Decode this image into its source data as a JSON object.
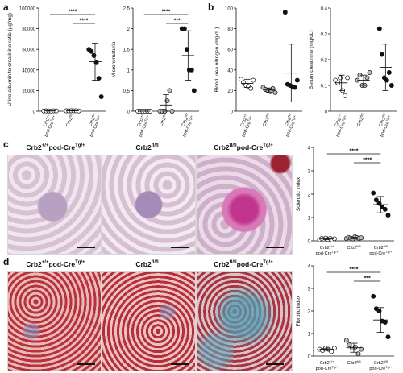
{
  "panels": {
    "a": "a",
    "b": "b",
    "c": "c",
    "d": "d"
  },
  "groups3": [
    "Crb2+/+ pod-Cre Tg/+",
    "Crb2 fl/fl",
    "Crb2 fl/fl pod-Cre Tg/+"
  ],
  "group_labels": {
    "g1_line1": "Crb2",
    "g1_sup1": "+/+",
    "g1_line2": "pod-Cre",
    "g1_sup2": "Tg/+",
    "g2_line1": "Crb2",
    "g2_sup1": "fl/fl",
    "g3_line1": "Crb2",
    "g3_sup1": "fl/fl",
    "g3_line2": "pod-Cre",
    "g3_sup2": "Tg/+"
  },
  "sig": {
    "four": "****",
    "three": "***"
  },
  "micro_headers": {
    "c1": "Crb2",
    "c1s": "+/+",
    "c1b": "pod-Cre",
    "c1bs": "Tg/+",
    "c2": "Crb2",
    "c2s": "fl/fl",
    "c3": "Crb2",
    "c3s": "fl/fl",
    "c3b": "pod-Cre",
    "c3bs": "Tg/+"
  },
  "chart_data": [
    {
      "type": "scatter",
      "panel": "a",
      "ylabel": "Urine albumin to creatinine ratio (µg/mg)",
      "ylim": [
        0,
        100000
      ],
      "yticks": [
        0,
        20000,
        40000,
        60000,
        80000,
        100000
      ],
      "yticklabels": [
        "0",
        "20000",
        "40000",
        "60000",
        "80000",
        "100000"
      ],
      "series": [
        {
          "values": [
            200,
            300,
            250,
            150,
            350,
            300
          ]
        },
        {
          "values": [
            400,
            300,
            500,
            350,
            450,
            250
          ]
        },
        {
          "values": [
            60000,
            58000,
            54000,
            47000,
            32000,
            14000
          ]
        }
      ],
      "mean": [
        250,
        375,
        48000
      ],
      "sd": [
        100,
        100,
        18000
      ],
      "brackets": [
        {
          "from": 0,
          "to": 2,
          "label": "****"
        },
        {
          "from": 1,
          "to": 2,
          "label": "****"
        }
      ]
    },
    {
      "type": "scatter",
      "panel": "a",
      "ylabel": "Microhematuria",
      "ylim": [
        0,
        2.5
      ],
      "yticks": [
        0,
        0.5,
        1,
        1.5,
        2,
        2.5
      ],
      "yticklabels": [
        "0",
        "0.5",
        "1",
        "1.5",
        "2",
        "2.5"
      ],
      "series": [
        {
          "values": [
            0,
            0,
            0,
            0,
            0,
            0
          ]
        },
        {
          "values": [
            0,
            0,
            0,
            0.25,
            0.5,
            0
          ]
        },
        {
          "values": [
            2,
            2,
            1.5,
            1,
            1,
            0.5
          ]
        }
      ],
      "mean": [
        0,
        0.15,
        1.35
      ],
      "sd": [
        0,
        0.25,
        0.6
      ],
      "brackets": [
        {
          "from": 0,
          "to": 2,
          "label": "****"
        },
        {
          "from": 1,
          "to": 2,
          "label": "***"
        }
      ]
    },
    {
      "type": "scatter",
      "panel": "b",
      "ylabel": "Blood urea nitrogen (mg/dL)",
      "ylim": [
        0,
        100
      ],
      "yticks": [
        0,
        20,
        40,
        60,
        80,
        100
      ],
      "yticklabels": [
        "0",
        "20",
        "40",
        "60",
        "80",
        "100"
      ],
      "series": [
        {
          "values": [
            31,
            28,
            25,
            24,
            22,
            30
          ]
        },
        {
          "values": [
            23,
            21,
            20,
            19,
            22,
            18
          ]
        },
        {
          "values": [
            96,
            26,
            25,
            24,
            23,
            30
          ]
        }
      ],
      "mean": [
        27,
        20.5,
        37
      ],
      "sd": [
        4,
        2,
        28
      ],
      "brackets": []
    },
    {
      "type": "scatter",
      "panel": "b",
      "ylabel": "Serum creatinine (mg/dL)",
      "ylim": [
        0,
        0.4
      ],
      "yticks": [
        0,
        0.1,
        0.2,
        0.3,
        0.4
      ],
      "yticklabels": [
        "0",
        "0.1",
        "0.2",
        "0.3",
        "0.4"
      ],
      "series": [
        {
          "values": [
            0.12,
            0.11,
            0.13,
            0.08,
            0.06,
            0.13
          ]
        },
        {
          "values": [
            0.12,
            0.14,
            0.1,
            0.1,
            0.13,
            0.15
          ]
        },
        {
          "values": [
            0.32,
            0.22,
            0.13,
            0.12,
            0.15,
            0.1
          ]
        }
      ],
      "mean": [
        0.11,
        0.12,
        0.17
      ],
      "sd": [
        0.03,
        0.02,
        0.09
      ],
      "brackets": []
    },
    {
      "type": "scatter",
      "panel": "c",
      "ylabel": "Sclerotic index",
      "ylim": [
        0,
        4
      ],
      "yticks": [
        0,
        1,
        2,
        3,
        4
      ],
      "yticklabels": [
        "0",
        "1",
        "2",
        "3",
        "4"
      ],
      "series": [
        {
          "values": [
            0.05,
            0.1,
            0.08,
            0.12,
            0.06,
            0.1,
            0.04,
            0.09
          ]
        },
        {
          "values": [
            0.1,
            0.15,
            0.12,
            0.08,
            0.18,
            0.14,
            0.1,
            0.13
          ]
        },
        {
          "values": [
            2.05,
            1.75,
            1.6,
            1.45,
            1.35,
            1.1
          ]
        }
      ],
      "mean": [
        0.08,
        0.12,
        1.55
      ],
      "sd": [
        0.03,
        0.04,
        0.35
      ],
      "brackets": [
        {
          "from": 0,
          "to": 2,
          "label": "****"
        },
        {
          "from": 1,
          "to": 2,
          "label": "****"
        }
      ]
    },
    {
      "type": "scatter",
      "panel": "d",
      "ylabel": "Fibrotic index",
      "ylim": [
        0,
        4
      ],
      "yticks": [
        0,
        1,
        2,
        3,
        4
      ],
      "yticklabels": [
        "0",
        "1",
        "2",
        "3",
        "4"
      ],
      "series": [
        {
          "values": [
            0.3,
            0.25,
            0.35,
            0.3,
            0.2,
            0.35
          ]
        },
        {
          "values": [
            0.7,
            0.5,
            0.35,
            0.4,
            0.1,
            0.3
          ]
        },
        {
          "values": [
            2.65,
            2.1,
            2.0,
            1.55,
            1.5,
            0.85
          ]
        }
      ],
      "mean": [
        0.3,
        0.37,
        1.6
      ],
      "sd": [
        0.05,
        0.2,
        0.55
      ],
      "brackets": [
        {
          "from": 0,
          "to": 2,
          "label": "****"
        },
        {
          "from": 1,
          "to": 2,
          "label": "***"
        }
      ]
    }
  ]
}
